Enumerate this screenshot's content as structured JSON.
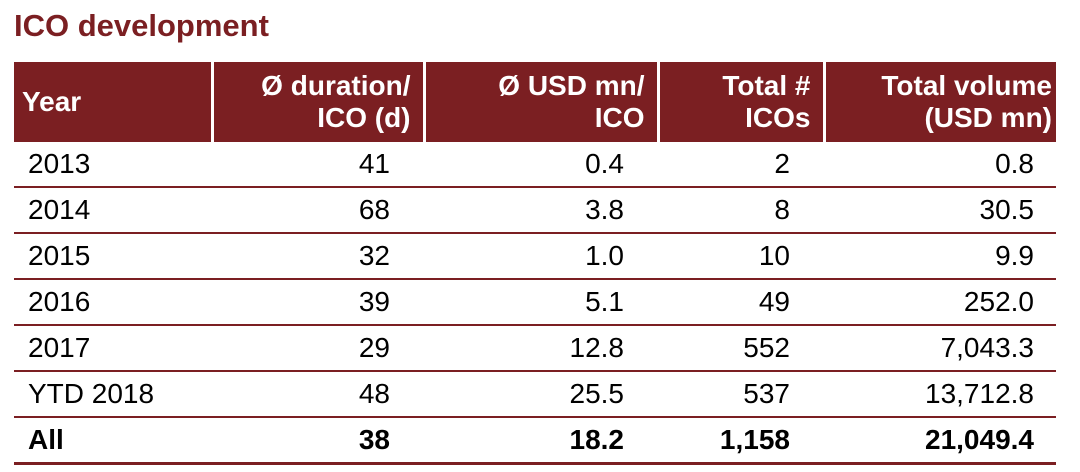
{
  "title": "ICO development",
  "accent_color": "#7b1f22",
  "table": {
    "headers": [
      [
        "Year"
      ],
      [
        "Ø duration/",
        "ICO (d)"
      ],
      [
        "Ø USD mn/",
        "ICO"
      ],
      [
        "Total #",
        "ICOs"
      ],
      [
        "Total volume",
        "(USD mn)"
      ]
    ],
    "rows": [
      [
        "2013",
        "41",
        "0.4",
        "2",
        "0.8"
      ],
      [
        "2014",
        "68",
        "3.8",
        "8",
        "30.5"
      ],
      [
        "2015",
        "32",
        "1.0",
        "10",
        "9.9"
      ],
      [
        "2016",
        "39",
        "5.1",
        "49",
        "252.0"
      ],
      [
        "2017",
        "29",
        "12.8",
        "552",
        "7,043.3"
      ],
      [
        "YTD 2018",
        "48",
        "25.5",
        "537",
        "13,712.8"
      ]
    ],
    "total_row": [
      "All",
      "38",
      "18.2",
      "1,158",
      "21,049.4"
    ]
  }
}
